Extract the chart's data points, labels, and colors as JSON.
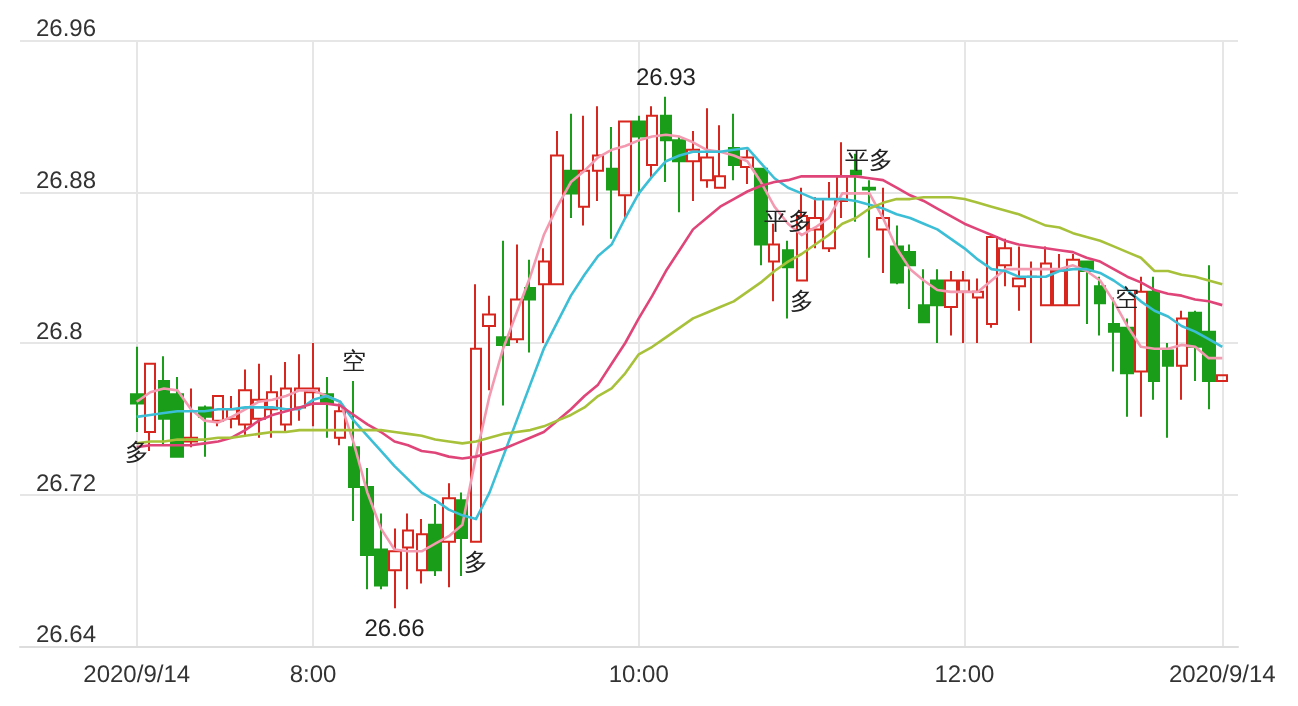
{
  "chart_data": {
    "type": "candlestick",
    "x": [
      6.9167,
      7,
      7.0833,
      7.1667,
      7.25,
      7.3333,
      7.4167,
      7.5,
      7.5833,
      7.6667,
      7.75,
      7.8333,
      7.9167,
      8,
      8.0833,
      8.1667,
      8.25,
      8.3333,
      8.4167,
      8.5,
      8.5833,
      8.6667,
      8.75,
      8.8333,
      8.9167,
      9,
      9.0833,
      9.1667,
      9.25,
      9.3333,
      9.4167,
      9.5,
      9.5833,
      9.6667,
      9.75,
      9.8333,
      9.9167,
      10,
      10.0833,
      10.1667,
      10.25,
      10.3333,
      10.4167,
      10.5,
      10.5833,
      10.6667,
      10.75,
      10.8333,
      10.9167,
      11,
      11.0833,
      11.1667,
      11.25,
      11.3333,
      11.4167,
      11.5,
      11.5833,
      11.6667,
      11.75,
      11.8333,
      11.9167,
      12,
      12.0833,
      12.1667,
      12.25,
      12.3333,
      12.4167,
      12.5,
      12.5833,
      12.6667,
      12.75,
      12.8333,
      12.9167,
      13,
      13.0833,
      13.1667,
      13.25,
      13.3333,
      13.4167,
      13.5,
      13.5833
    ],
    "ohlc": [
      [
        26.773,
        26.798,
        26.753,
        26.768
      ],
      [
        26.753,
        26.789,
        26.743,
        26.789
      ],
      [
        26.78,
        26.793,
        26.746,
        26.76
      ],
      [
        26.773,
        26.782,
        26.74,
        26.74
      ],
      [
        26.748,
        26.776,
        26.745,
        26.75
      ],
      [
        26.766,
        26.767,
        26.74,
        26.761
      ],
      [
        26.759,
        26.772,
        26.756,
        26.772
      ],
      [
        26.76,
        26.772,
        26.755,
        26.765
      ],
      [
        26.757,
        26.786,
        26.751,
        26.775
      ],
      [
        26.76,
        26.789,
        26.75,
        26.77
      ],
      [
        26.765,
        26.783,
        26.75,
        26.774
      ],
      [
        26.757,
        26.79,
        26.753,
        26.776
      ],
      [
        26.766,
        26.794,
        26.759,
        26.776
      ],
      [
        26.774,
        26.8,
        26.756,
        26.776
      ],
      [
        26.773,
        26.782,
        26.75,
        26.768
      ],
      [
        26.75,
        26.768,
        26.746,
        26.764
      ],
      [
        26.745,
        26.78,
        26.706,
        26.724
      ],
      [
        26.724,
        26.734,
        26.67,
        26.688
      ],
      [
        26.691,
        26.71,
        26.67,
        26.672
      ],
      [
        26.68,
        26.702,
        26.66,
        26.69
      ],
      [
        26.692,
        26.71,
        26.67,
        26.701
      ],
      [
        26.68,
        26.707,
        26.673,
        26.699
      ],
      [
        26.704,
        26.715,
        26.677,
        26.68
      ],
      [
        26.695,
        26.726,
        26.671,
        26.718
      ],
      [
        26.717,
        26.721,
        26.677,
        26.697
      ],
      [
        26.695,
        26.831,
        26.695,
        26.797
      ],
      [
        26.809,
        26.825,
        26.775,
        26.815
      ],
      [
        26.803,
        26.854,
        26.767,
        26.799
      ],
      [
        26.802,
        26.852,
        26.8,
        26.823
      ],
      [
        26.829,
        26.844,
        26.795,
        26.823
      ],
      [
        26.831,
        26.85,
        26.8,
        26.843
      ],
      [
        26.831,
        26.912,
        26.831,
        26.899
      ],
      [
        26.891,
        26.921,
        26.866,
        26.879
      ],
      [
        26.872,
        26.92,
        26.862,
        26.891
      ],
      [
        26.891,
        26.925,
        26.875,
        26.899
      ],
      [
        26.892,
        26.914,
        26.855,
        26.881
      ],
      [
        26.878,
        26.917,
        26.866,
        26.917
      ],
      [
        26.917,
        26.92,
        26.878,
        26.909
      ],
      [
        26.894,
        26.925,
        26.887,
        26.92
      ],
      [
        26.92,
        26.93,
        26.885,
        26.907
      ],
      [
        26.907,
        26.909,
        26.869,
        26.896
      ],
      [
        26.896,
        26.912,
        26.875,
        26.902
      ],
      [
        26.886,
        26.924,
        26.882,
        26.898
      ],
      [
        26.882,
        26.915,
        26.882,
        26.888
      ],
      [
        26.903,
        26.921,
        26.886,
        26.894
      ],
      [
        26.893,
        26.902,
        26.884,
        26.898
      ],
      [
        26.892,
        26.892,
        26.841,
        26.852
      ],
      [
        26.843,
        26.863,
        26.822,
        26.852
      ],
      [
        26.849,
        26.854,
        26.813,
        26.84
      ],
      [
        26.833,
        26.882,
        26.833,
        26.867
      ],
      [
        26.86,
        26.877,
        26.85,
        26.866
      ],
      [
        26.85,
        26.885,
        26.848,
        26.876
      ],
      [
        26.875,
        26.906,
        26.866,
        26.888
      ],
      [
        26.891,
        26.9,
        26.864,
        26.889
      ],
      [
        26.882,
        26.886,
        26.845,
        26.881
      ],
      [
        26.86,
        26.882,
        26.837,
        26.866
      ],
      [
        26.851,
        26.862,
        26.831,
        26.832
      ],
      [
        26.848,
        26.852,
        26.818,
        26.841
      ],
      [
        26.82,
        26.839,
        26.811,
        26.811
      ],
      [
        26.833,
        26.839,
        26.8,
        26.82
      ],
      [
        26.819,
        26.838,
        26.804,
        26.833
      ],
      [
        26.827,
        26.838,
        26.8,
        26.833
      ],
      [
        26.824,
        26.834,
        26.8,
        26.827
      ],
      [
        26.81,
        26.856,
        26.808,
        26.856
      ],
      [
        26.841,
        26.855,
        26.83,
        26.85
      ],
      [
        26.83,
        26.851,
        26.817,
        26.834
      ],
      [
        26.835,
        26.843,
        26.8,
        26.835
      ],
      [
        26.82,
        26.851,
        26.82,
        26.842
      ],
      [
        26.82,
        26.847,
        26.82,
        26.838
      ],
      [
        26.82,
        26.847,
        26.82,
        26.844
      ],
      [
        26.843,
        26.843,
        26.81,
        26.838
      ],
      [
        26.83,
        26.835,
        26.804,
        26.821
      ],
      [
        26.81,
        26.824,
        26.785,
        26.806
      ],
      [
        26.808,
        26.813,
        26.761,
        26.784
      ],
      [
        26.785,
        26.835,
        26.761,
        26.827
      ],
      [
        26.827,
        26.835,
        26.77,
        26.78
      ],
      [
        26.796,
        26.8,
        26.75,
        26.788
      ],
      [
        26.788,
        26.817,
        26.77,
        26.813
      ],
      [
        26.816,
        26.817,
        26.78,
        26.798
      ],
      [
        26.806,
        26.841,
        26.765,
        26.78
      ],
      [
        26.78,
        26.783,
        26.78,
        26.783
      ]
    ],
    "series": [
      {
        "type": "line",
        "color": "#f49ab0",
        "values": [
          26.769,
          26.774,
          26.776,
          26.775,
          26.765,
          26.759,
          26.758,
          26.761,
          26.765,
          26.769,
          26.77,
          26.772,
          26.775,
          26.775,
          26.772,
          26.769,
          26.747,
          26.721,
          26.702,
          26.691,
          26.69,
          26.69,
          26.694,
          26.698,
          26.704,
          26.74,
          26.772,
          26.797,
          26.816,
          26.835,
          26.857,
          26.872,
          26.885,
          26.891,
          26.898,
          26.902,
          26.904,
          26.907,
          26.909,
          26.91,
          26.909,
          26.906,
          26.902,
          26.901,
          26.899,
          26.896,
          26.885,
          26.872,
          26.863,
          26.857,
          26.861,
          26.866,
          26.879,
          26.879,
          26.879,
          26.866,
          26.85,
          26.839,
          26.833,
          26.828,
          26.827,
          26.827,
          26.827,
          26.833,
          26.839,
          26.839,
          26.839,
          26.839,
          26.839,
          26.841,
          26.838,
          26.833,
          26.822,
          26.809,
          26.798,
          26.797,
          26.797,
          26.799,
          26.798,
          26.792,
          26.792
        ]
      },
      {
        "type": "line",
        "color": "#3cbfd6",
        "values": [
          26.761,
          26.762,
          26.763,
          26.764,
          26.764,
          26.764,
          26.765,
          26.765,
          26.766,
          26.766,
          26.766,
          26.765,
          26.765,
          26.77,
          26.772,
          26.769,
          26.759,
          26.751,
          26.743,
          26.735,
          26.728,
          26.721,
          26.717,
          26.712,
          26.709,
          26.707,
          26.721,
          26.74,
          26.759,
          26.778,
          26.797,
          26.811,
          26.825,
          26.836,
          26.846,
          26.852,
          26.866,
          26.879,
          26.888,
          26.896,
          26.899,
          26.901,
          26.901,
          26.901,
          26.902,
          26.903,
          26.895,
          26.887,
          26.882,
          26.879,
          26.876,
          26.876,
          26.876,
          26.875,
          26.873,
          26.871,
          26.868,
          26.866,
          26.863,
          26.86,
          26.855,
          26.85,
          26.844,
          26.839,
          26.838,
          26.835,
          26.835,
          26.835,
          26.838,
          26.839,
          26.839,
          26.837,
          26.833,
          26.828,
          26.822,
          26.817,
          26.814,
          26.809,
          26.806,
          26.802,
          26.798
        ]
      },
      {
        "type": "line",
        "color": "#e0457a",
        "values": [
          26.745,
          26.746,
          26.746,
          26.746,
          26.746,
          26.747,
          26.748,
          26.75,
          26.754,
          26.759,
          26.762,
          26.764,
          26.766,
          26.768,
          26.768,
          26.767,
          26.762,
          26.757,
          26.753,
          26.748,
          26.746,
          26.743,
          26.742,
          26.74,
          26.739,
          26.74,
          26.742,
          26.744,
          26.747,
          26.75,
          26.753,
          26.759,
          26.765,
          26.772,
          26.778,
          26.789,
          26.8,
          26.813,
          26.825,
          26.838,
          26.849,
          26.86,
          26.866,
          26.872,
          26.876,
          26.88,
          26.883,
          26.885,
          26.886,
          26.888,
          26.888,
          26.888,
          26.888,
          26.888,
          26.887,
          26.886,
          26.882,
          26.878,
          26.875,
          26.871,
          26.867,
          26.863,
          26.86,
          26.857,
          26.854,
          26.852,
          26.851,
          26.85,
          26.849,
          26.848,
          26.845,
          26.843,
          26.839,
          26.835,
          26.832,
          26.828,
          26.826,
          26.825,
          26.823,
          26.822,
          26.82
        ]
      },
      {
        "type": "line",
        "color": "#a8c13a",
        "values": [
          26.747,
          26.748,
          26.748,
          26.749,
          26.749,
          26.749,
          26.75,
          26.75,
          26.751,
          26.752,
          26.753,
          26.753,
          26.754,
          26.754,
          26.754,
          26.754,
          26.754,
          26.754,
          26.754,
          26.753,
          26.752,
          26.751,
          26.749,
          26.748,
          26.747,
          26.748,
          26.75,
          26.752,
          26.753,
          26.754,
          26.756,
          26.759,
          26.762,
          26.766,
          26.772,
          26.776,
          26.784,
          26.794,
          26.798,
          26.803,
          26.808,
          26.813,
          26.816,
          26.819,
          26.822,
          26.827,
          26.832,
          26.838,
          26.843,
          26.847,
          26.852,
          26.857,
          26.863,
          26.866,
          26.871,
          26.874,
          26.876,
          26.876,
          26.877,
          26.877,
          26.877,
          26.876,
          26.874,
          26.872,
          26.87,
          26.868,
          26.865,
          26.862,
          26.861,
          26.858,
          26.856,
          26.854,
          26.851,
          26.848,
          26.845,
          26.838,
          26.838,
          26.836,
          26.835,
          26.833,
          26.831
        ]
      }
    ],
    "xlim": [
      6.2,
      13.68
    ],
    "xticks": [
      {
        "value": 6.9167,
        "label": "2020/9/14"
      },
      {
        "value": 8,
        "label": "8:00"
      },
      {
        "value": 10,
        "label": "10:00"
      },
      {
        "value": 12,
        "label": "12:00"
      },
      {
        "value": 13.5833,
        "label": "2020/9/14"
      }
    ],
    "ylim": [
      26.64,
      26.96
    ],
    "yticks": [
      26.64,
      26.72,
      26.8,
      26.88,
      26.96
    ],
    "grid": true,
    "marker": "none",
    "annotations": [
      {
        "text": "26.93",
        "x": 10.1667,
        "y": 26.93
      },
      {
        "text": "26.66",
        "x": 8.5,
        "y": 26.66
      },
      {
        "text": "多",
        "x": 6.9167,
        "y": 26.753
      },
      {
        "text": "空",
        "x": 8.25,
        "y": 26.78
      },
      {
        "text": "多",
        "x": 9,
        "y": 26.695
      },
      {
        "text": "平多",
        "x": 10.9167,
        "y": 26.854
      },
      {
        "text": "多",
        "x": 11,
        "y": 26.833
      },
      {
        "text": "平多",
        "x": 11.4167,
        "y": 26.886
      },
      {
        "text": "空",
        "x": 13,
        "y": 26.813
      }
    ]
  }
}
